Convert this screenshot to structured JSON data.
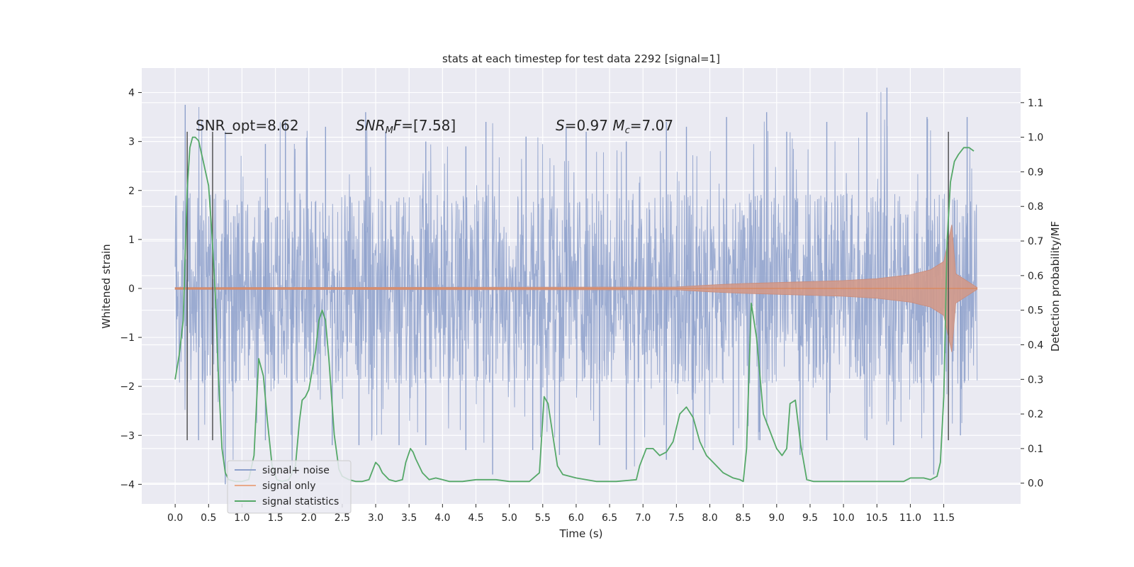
{
  "chart_data": {
    "type": "line",
    "title": "stats at each timestep for test data 2292 [signal=1]",
    "xlabel": "Time (s)",
    "ylabel": "Whitened strain",
    "y2label": "Detection probability/MF",
    "xlim": [
      -0.5,
      12.65
    ],
    "ylim": [
      -4.4,
      4.5
    ],
    "y2lim": [
      -0.06,
      1.2
    ],
    "x_ticks": [
      0.0,
      0.5,
      1.0,
      1.5,
      2.0,
      2.5,
      3.0,
      3.5,
      4.0,
      4.5,
      5.0,
      5.5,
      6.0,
      6.5,
      7.0,
      7.5,
      8.0,
      8.5,
      9.0,
      9.5,
      10.0,
      10.5,
      11.0,
      11.5
    ],
    "x_tick_labels": [
      "0.0",
      "0.5",
      "1.0",
      "1.5",
      "2.0",
      "2.5",
      "3.0",
      "3.5",
      "4.0",
      "4.5",
      "5.0",
      "5.5",
      "6.0",
      "6.5",
      "7.0",
      "7.5",
      "8.0",
      "8.5",
      "9.0",
      "9.5",
      "10.0",
      "10.5",
      "11.0",
      "11.5"
    ],
    "y_ticks": [
      -4,
      -3,
      -2,
      -1,
      0,
      1,
      2,
      3,
      4
    ],
    "y_tick_labels": [
      "−4",
      "−3",
      "−2",
      "−1",
      "0",
      "1",
      "2",
      "3",
      "4"
    ],
    "y2_ticks": [
      0.0,
      0.1,
      0.2,
      0.3,
      0.4,
      0.5,
      0.6,
      0.7,
      0.8,
      0.9,
      1.0,
      1.1
    ],
    "y2_tick_labels": [
      "0.0",
      "0.1",
      "0.2",
      "0.3",
      "0.4",
      "0.5",
      "0.6",
      "0.7",
      "0.8",
      "0.9",
      "1.0",
      "1.1"
    ],
    "grid": true,
    "legend_position": "lower-left",
    "annotations": [
      {
        "text": "SNR_opt=8.62",
        "x": 0.2,
        "y": 3.25
      },
      {
        "text": "SNR_MF=[7.58]",
        "x": 2.6,
        "y": 3.25
      },
      {
        "text": "S=0.97   M_c=7.07",
        "x": 5.6,
        "y": 3.25
      }
    ],
    "vlines": [
      0.18,
      0.56,
      11.57
    ],
    "vline_range": [
      -3.1,
      3.2
    ],
    "series": [
      {
        "name": "signal+ noise",
        "color": "#4c72b0",
        "kind": "noise",
        "x_range": [
          0.0,
          12.0
        ],
        "core_amplitude": 1.95,
        "peak_positive": [
          3.75,
          3.2,
          2.95,
          3.4,
          3.3,
          3.6,
          3.2,
          3.0,
          2.9,
          3.4,
          3.1,
          3.3,
          3.2,
          3.0,
          3.4,
          3.3,
          3.5,
          3.6,
          3.2,
          3.4,
          3.6,
          4.1,
          3.5,
          3.5
        ],
        "peak_negative": [
          -3.1,
          -4.0,
          -3.1,
          -3.7,
          -3.2,
          -3.2,
          -3.2,
          -3.2,
          -3.3,
          -3.8,
          -3.3,
          -3.4,
          -3.2,
          -3.7,
          -3.5,
          -3.3,
          -3.2,
          -3.1,
          -3.4,
          -3.1,
          -3.1,
          -3.2,
          -3.8,
          -3.0
        ]
      },
      {
        "name": "signal only",
        "color": "#dd8452",
        "kind": "chirp",
        "x": [
          0.0,
          7.5,
          8.0,
          8.5,
          9.0,
          9.5,
          10.0,
          10.5,
          11.0,
          11.3,
          11.5,
          11.62,
          11.68,
          12.0
        ],
        "amplitude": [
          0.02,
          0.03,
          0.07,
          0.1,
          0.12,
          0.14,
          0.16,
          0.2,
          0.28,
          0.38,
          0.55,
          1.3,
          0.3,
          0.02
        ]
      },
      {
        "name": "signal statistics",
        "color": "#55a868",
        "axis": "y2",
        "x": [
          0.0,
          0.06,
          0.12,
          0.18,
          0.22,
          0.26,
          0.3,
          0.35,
          0.42,
          0.5,
          0.55,
          0.6,
          0.65,
          0.7,
          0.75,
          0.8,
          0.9,
          1.0,
          1.1,
          1.18,
          1.25,
          1.32,
          1.38,
          1.45,
          1.52,
          1.6,
          1.7,
          1.8,
          1.86,
          1.9,
          1.95,
          2.0,
          2.1,
          2.15,
          2.2,
          2.25,
          2.3,
          2.38,
          2.45,
          2.5,
          2.6,
          2.7,
          2.8,
          2.9,
          3.0,
          3.05,
          3.1,
          3.2,
          3.3,
          3.4,
          3.45,
          3.52,
          3.56,
          3.6,
          3.7,
          3.8,
          3.9,
          4.0,
          4.1,
          4.3,
          4.5,
          4.8,
          5.0,
          5.3,
          5.45,
          5.52,
          5.58,
          5.65,
          5.72,
          5.8,
          6.0,
          6.3,
          6.6,
          6.9,
          6.95,
          7.05,
          7.15,
          7.25,
          7.35,
          7.45,
          7.55,
          7.65,
          7.75,
          7.85,
          7.95,
          8.05,
          8.2,
          8.35,
          8.45,
          8.5,
          8.55,
          8.62,
          8.7,
          8.8,
          8.9,
          9.0,
          9.08,
          9.15,
          9.2,
          9.28,
          9.36,
          9.45,
          9.55,
          9.7,
          10.0,
          10.3,
          10.6,
          10.9,
          11.0,
          11.2,
          11.3,
          11.4,
          11.45,
          11.5,
          11.55,
          11.6,
          11.66,
          11.72,
          11.8,
          11.88,
          11.95
        ],
        "values": [
          0.3,
          0.37,
          0.47,
          0.85,
          0.97,
          1.0,
          1.0,
          0.99,
          0.93,
          0.86,
          0.72,
          0.55,
          0.3,
          0.1,
          0.03,
          0.01,
          0.005,
          0.005,
          0.01,
          0.08,
          0.36,
          0.31,
          0.18,
          0.05,
          0.01,
          0.005,
          0.01,
          0.05,
          0.18,
          0.24,
          0.25,
          0.27,
          0.38,
          0.47,
          0.5,
          0.47,
          0.36,
          0.14,
          0.04,
          0.02,
          0.01,
          0.005,
          0.005,
          0.01,
          0.06,
          0.05,
          0.03,
          0.01,
          0.005,
          0.01,
          0.06,
          0.1,
          0.09,
          0.07,
          0.03,
          0.01,
          0.015,
          0.01,
          0.005,
          0.005,
          0.01,
          0.01,
          0.005,
          0.005,
          0.03,
          0.25,
          0.23,
          0.14,
          0.05,
          0.025,
          0.015,
          0.005,
          0.005,
          0.01,
          0.05,
          0.1,
          0.1,
          0.08,
          0.09,
          0.12,
          0.2,
          0.22,
          0.19,
          0.12,
          0.08,
          0.06,
          0.03,
          0.015,
          0.01,
          0.005,
          0.1,
          0.52,
          0.42,
          0.2,
          0.15,
          0.1,
          0.08,
          0.1,
          0.23,
          0.24,
          0.11,
          0.01,
          0.005,
          0.005,
          0.005,
          0.005,
          0.005,
          0.005,
          0.015,
          0.015,
          0.01,
          0.02,
          0.06,
          0.25,
          0.7,
          0.87,
          0.93,
          0.95,
          0.97,
          0.97,
          0.96
        ]
      }
    ]
  }
}
